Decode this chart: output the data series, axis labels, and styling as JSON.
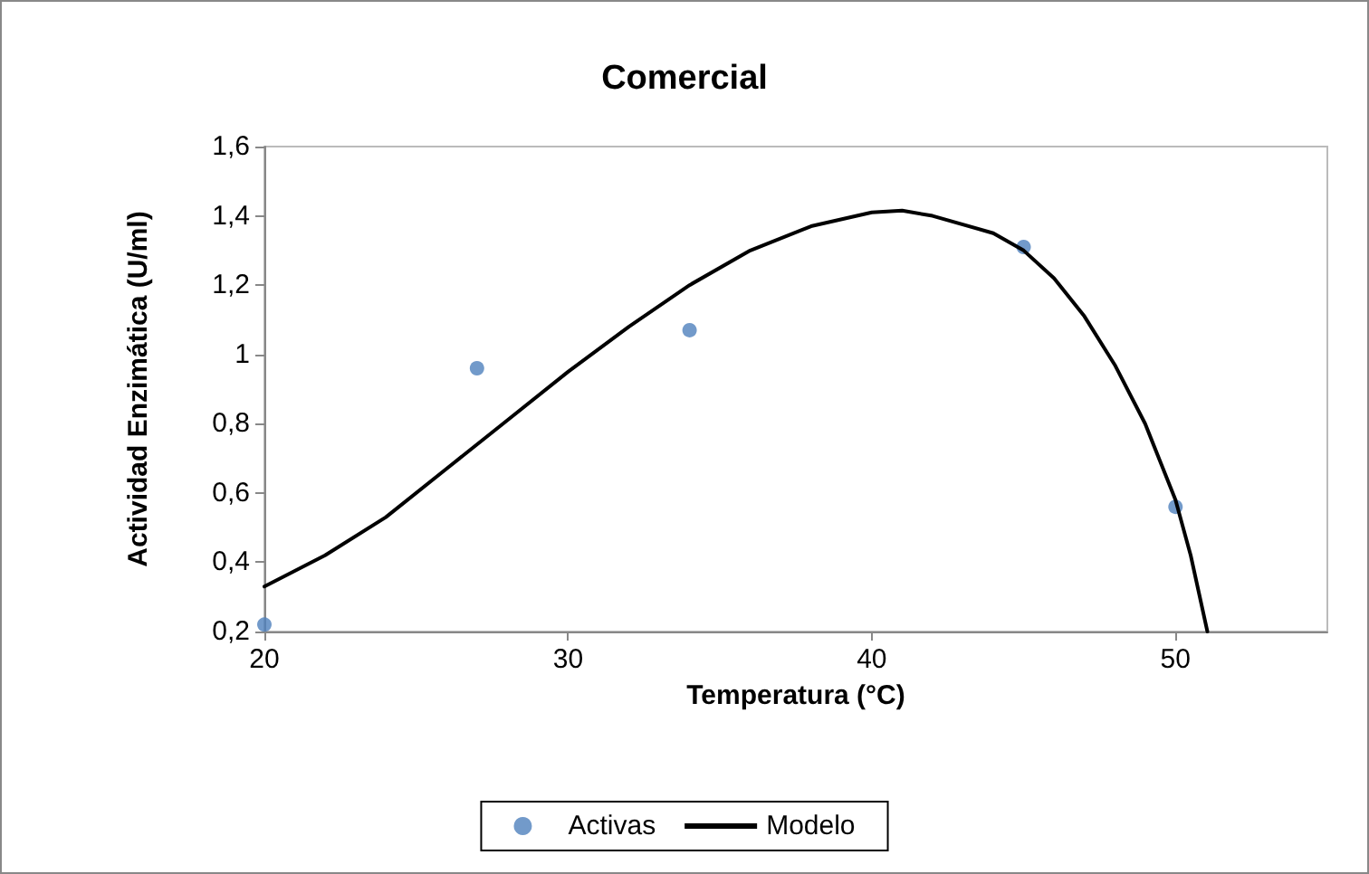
{
  "chart_data": {
    "type": "scatter",
    "title": "Comercial",
    "xlabel": "Temperatura (°C)",
    "ylabel": "Actividad Enzimática (U/ml)",
    "xlim": [
      20,
      55
    ],
    "xticks": [
      20,
      30,
      40,
      50
    ],
    "ylim": [
      0.2,
      1.6
    ],
    "yticks": [
      {
        "value": 0.2,
        "label": "0,2"
      },
      {
        "value": 0.4,
        "label": "0,4"
      },
      {
        "value": 0.6,
        "label": "0,6"
      },
      {
        "value": 0.8,
        "label": "0,8"
      },
      {
        "value": 1,
        "label": "1"
      },
      {
        "value": 1.2,
        "label": "1,2"
      },
      {
        "value": 1.4,
        "label": "1,4"
      },
      {
        "value": 1.6,
        "label": "1,6"
      }
    ],
    "grid": false,
    "legend": "bottom",
    "series": [
      {
        "name": "Activas",
        "type": "scatter",
        "color": "#4f81bd",
        "marker": "circle",
        "x": [
          20,
          27,
          34,
          45,
          50
        ],
        "values": [
          0.22,
          0.96,
          1.07,
          1.31,
          0.56
        ]
      },
      {
        "name": "Modelo",
        "type": "line",
        "color": "#000000",
        "marker": "none",
        "line_style": "solid",
        "x": [
          20,
          22,
          24,
          26,
          28,
          30,
          32,
          34,
          36,
          38,
          40,
          41,
          42,
          44,
          45,
          46,
          47,
          48,
          49,
          50,
          50.5,
          51.05
        ],
        "values": [
          0.33,
          0.42,
          0.53,
          0.67,
          0.81,
          0.95,
          1.08,
          1.2,
          1.3,
          1.37,
          1.41,
          1.415,
          1.4,
          1.35,
          1.3,
          1.22,
          1.11,
          0.97,
          0.8,
          0.58,
          0.42,
          0.2
        ]
      }
    ]
  }
}
